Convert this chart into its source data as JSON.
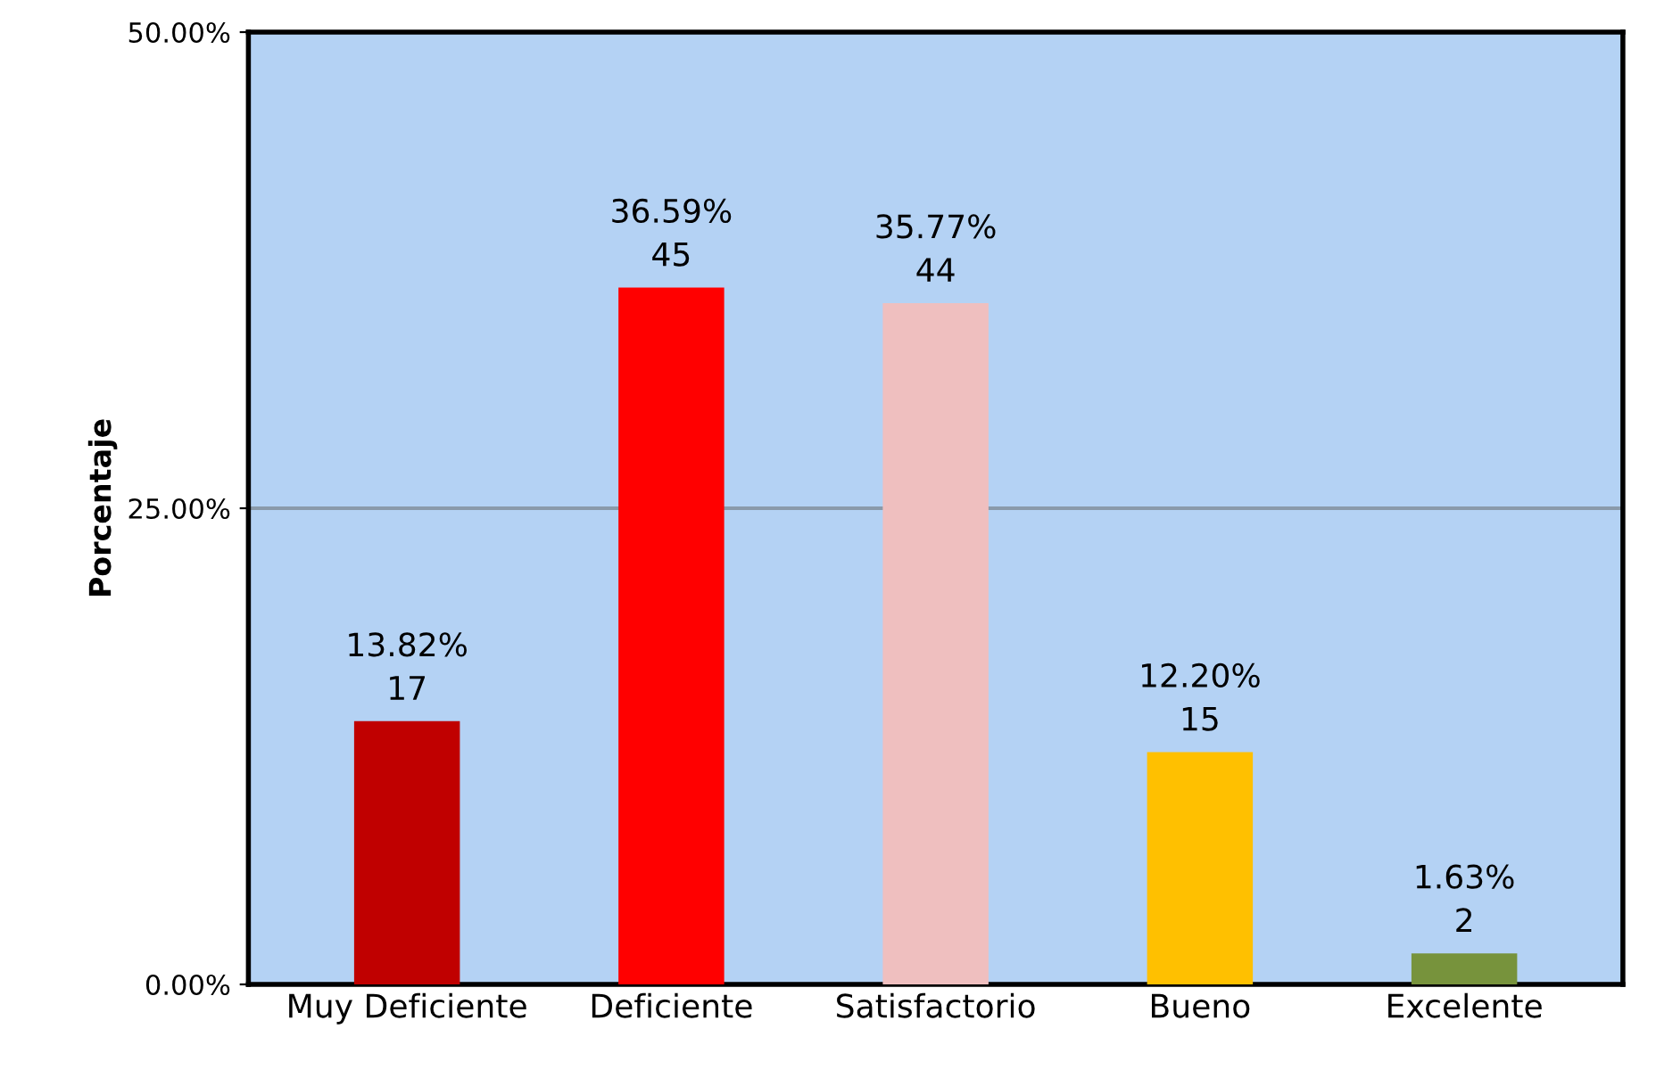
{
  "chart_data": {
    "type": "bar",
    "ylabel": "Porcentaje",
    "categories": [
      "Muy Deficiente",
      "Deficiente",
      "Satisfactorio",
      "Bueno",
      "Excelente"
    ],
    "values": [
      13.82,
      36.59,
      35.77,
      12.2,
      1.63
    ],
    "colors": [
      "#c00000",
      "#ff0000",
      "#efbfbf",
      "#ffc000",
      "#77933c"
    ],
    "value_labels": [
      "13.82%\n17",
      "36.59%\n45",
      "35.77%\n44",
      "12.20%\n15",
      "1.63%\n2"
    ],
    "ylim": [
      0,
      50
    ],
    "yticks": [
      {
        "value": 0,
        "label": "0.00%"
      },
      {
        "value": 25,
        "label": "25.00%"
      },
      {
        "value": 50,
        "label": "50.00%"
      }
    ],
    "grid": "y"
  }
}
